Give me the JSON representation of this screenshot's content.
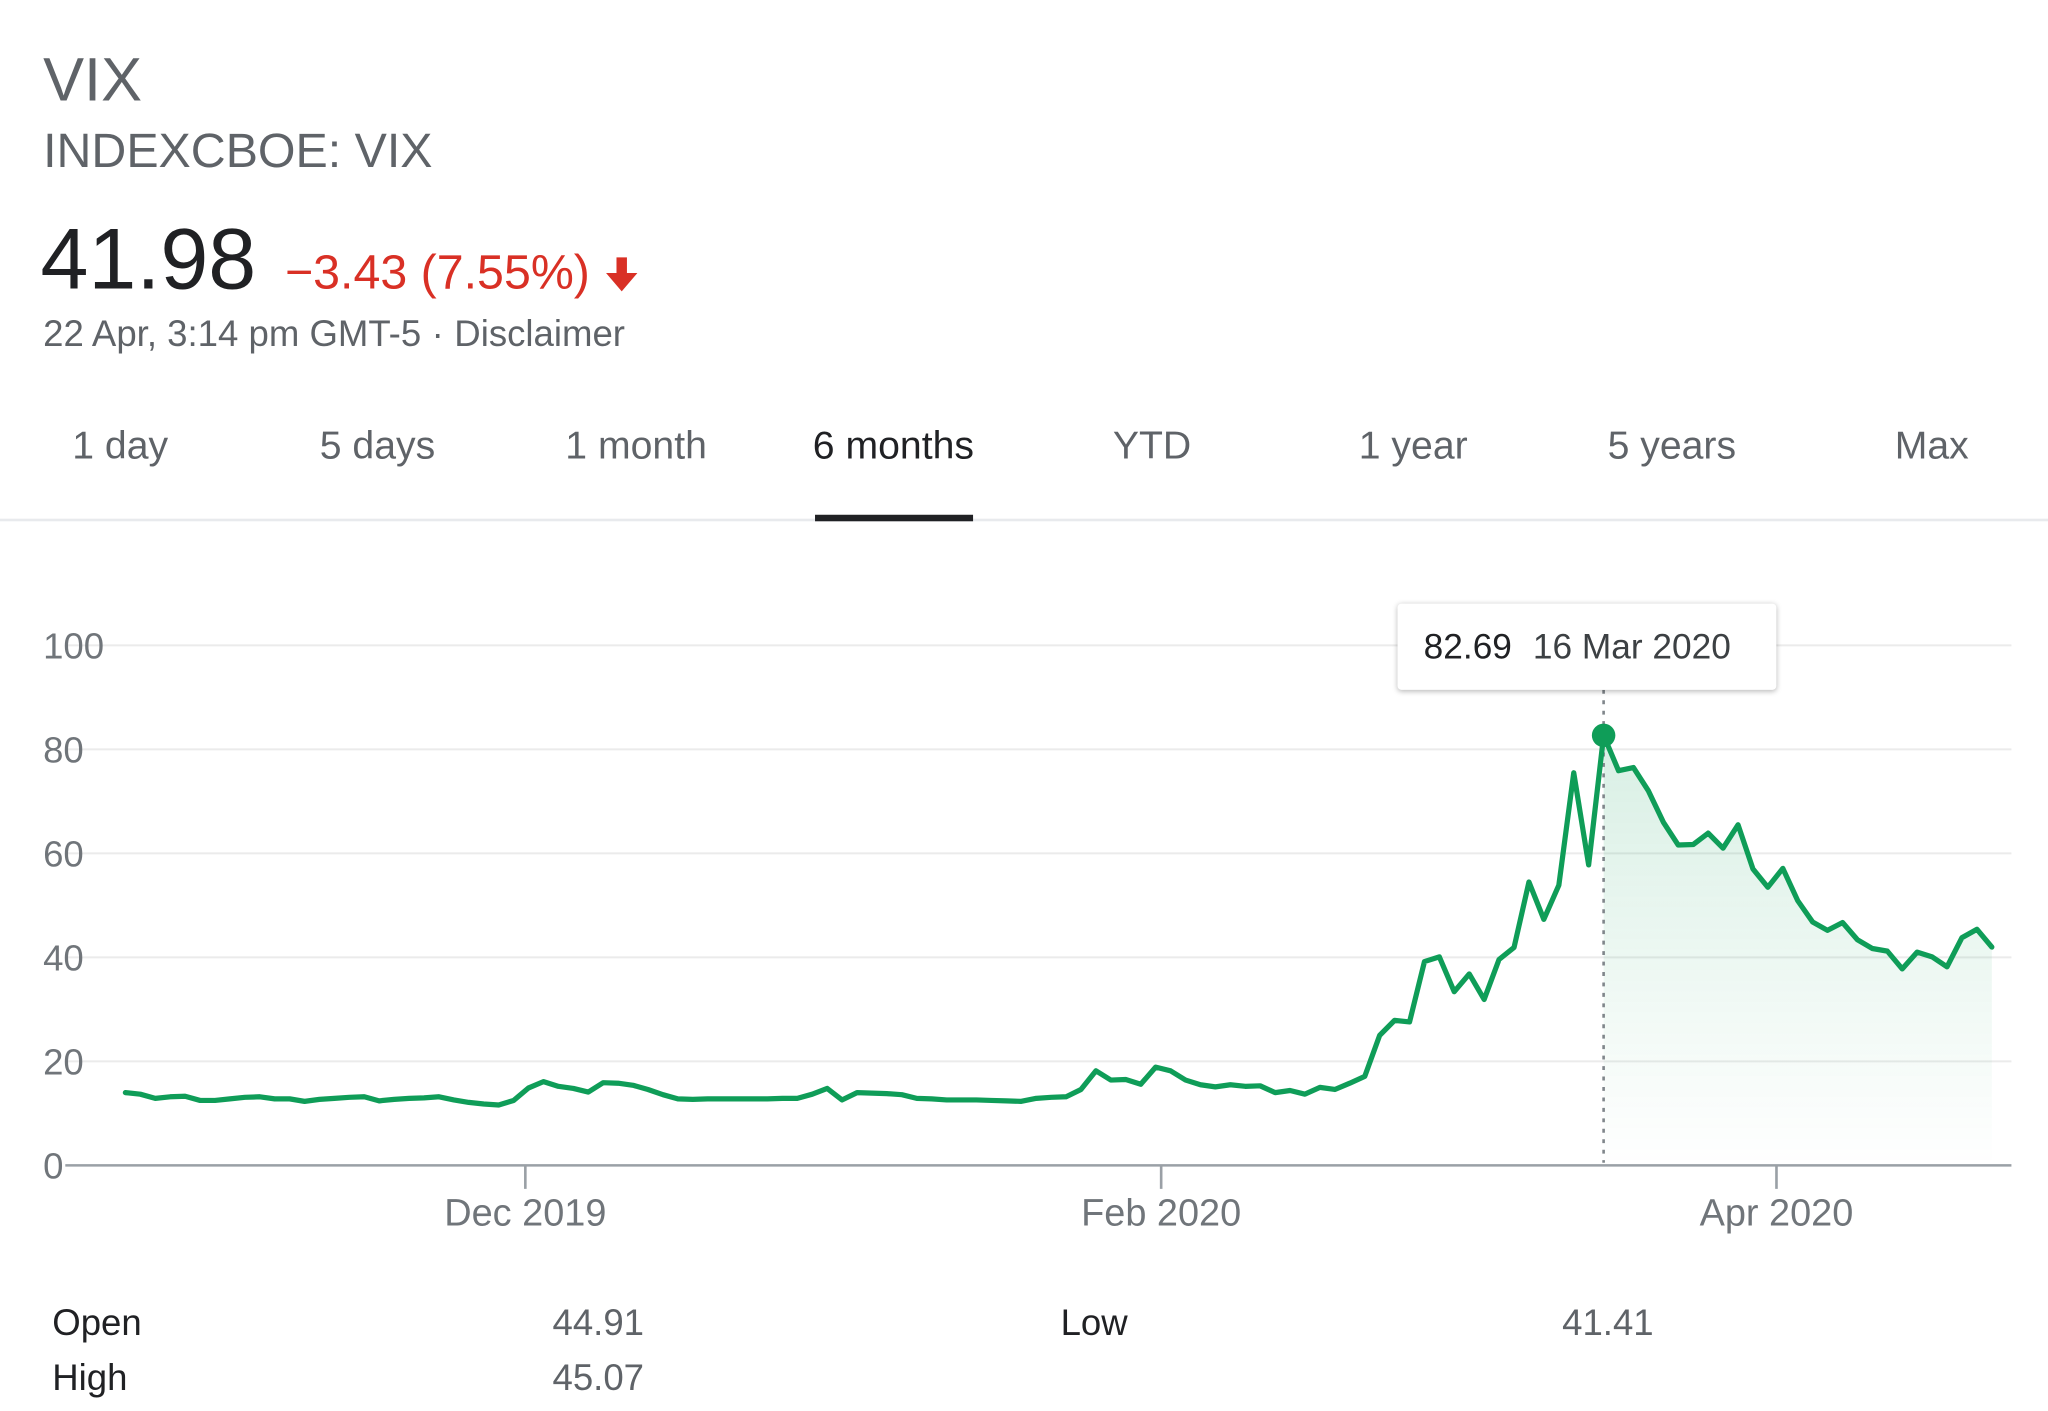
{
  "header": {
    "name": "VIX",
    "ticker": "INDEXCBOE: VIX",
    "price": "41.98",
    "change": "−3.43 (7.55%)",
    "direction_icon": "arrow-down-icon",
    "timestamp": "22 Apr, 3:14 pm GMT-5",
    "separator": "·",
    "disclaimer": "Disclaimer"
  },
  "tabs": [
    {
      "label": "1 day"
    },
    {
      "label": "5 days"
    },
    {
      "label": "1 month"
    },
    {
      "label": "6 months",
      "active": true
    },
    {
      "label": "YTD"
    },
    {
      "label": "1 year"
    },
    {
      "label": "5 years"
    },
    {
      "label": "Max"
    }
  ],
  "tooltip": {
    "value": "82.69",
    "date": "16 Mar 2020"
  },
  "colors": {
    "line": "#0f9d58",
    "negative": "#d93025",
    "grid": "#ebebeb",
    "axis": "#9aa0a6"
  },
  "chart_data": {
    "type": "line",
    "x_start": "2019-10-23",
    "x_end": "2020-04-22",
    "ylim": [
      0,
      100
    ],
    "yticks": [
      "0",
      "20",
      "40",
      "60",
      "80",
      "100"
    ],
    "xticks": [
      {
        "label": "Dec 2019",
        "date": "2019-12-01"
      },
      {
        "label": "Feb 2020",
        "date": "2020-02-01"
      },
      {
        "label": "Apr 2020",
        "date": "2020-04-01"
      }
    ],
    "highlight": {
      "date": "2020-03-16",
      "value": 82.69
    },
    "series": [
      {
        "values": [
          14.0,
          13.7,
          12.9,
          13.2,
          13.3,
          12.5,
          12.5,
          12.8,
          13.1,
          13.2,
          12.8,
          12.8,
          12.3,
          12.7,
          12.9,
          13.1,
          13.2,
          12.4,
          12.7,
          12.9,
          13.0,
          13.2,
          12.6,
          12.1,
          11.8,
          11.6,
          12.5,
          14.9,
          16.1,
          15.2,
          14.8,
          14.1,
          15.9,
          15.8,
          15.4,
          14.6,
          13.6,
          12.8,
          12.7,
          12.8,
          12.8,
          12.8,
          12.8,
          12.8,
          12.9,
          12.9,
          13.7,
          14.8,
          12.6,
          14.0,
          13.9,
          13.8,
          13.6,
          12.9,
          12.8,
          12.6,
          12.6,
          12.6,
          12.5,
          12.4,
          12.3,
          12.9,
          13.1,
          13.2,
          14.6,
          18.2,
          16.4,
          16.5,
          15.6,
          18.9,
          18.2,
          16.4,
          15.5,
          15.1,
          15.5,
          15.2,
          15.3,
          14.0,
          14.4,
          13.7,
          15.0,
          14.6,
          15.8,
          17.1,
          25.0,
          27.9,
          27.6,
          39.2,
          40.1,
          33.4,
          36.8,
          31.9,
          39.6,
          41.9,
          54.5,
          47.3,
          53.9,
          75.5,
          57.8,
          82.69,
          75.9,
          76.5,
          72.0,
          66.0,
          61.6,
          61.7,
          63.9,
          61.0,
          65.5,
          57.0,
          53.5,
          57.1,
          50.9,
          46.8,
          45.2,
          46.7,
          43.4,
          41.7,
          41.2,
          37.8,
          41.0,
          40.1,
          38.2,
          43.8,
          45.4,
          41.98
        ]
      }
    ]
  },
  "stats": [
    {
      "label": "Open",
      "value": "44.91"
    },
    {
      "label": "High",
      "value": "45.07"
    },
    {
      "label": "Low",
      "value": "41.41"
    }
  ]
}
